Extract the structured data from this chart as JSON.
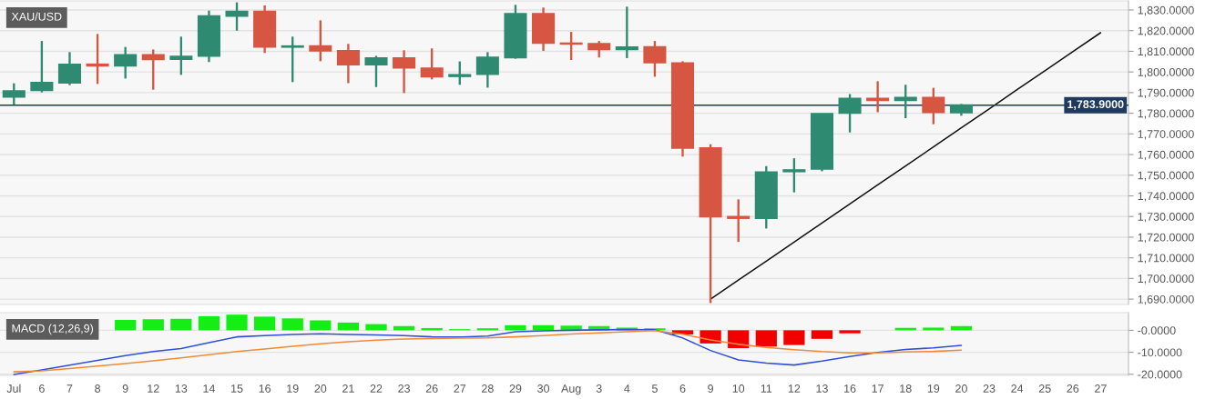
{
  "chart_data": [
    {
      "type": "candlestick",
      "title": "XAU/USD",
      "categories": [
        null,
        null,
        null,
        null,
        null,
        null,
        null,
        null,
        null,
        null,
        null,
        null,
        null,
        null,
        null,
        null,
        null,
        null,
        null,
        null,
        null,
        null,
        null,
        null,
        null,
        null,
        null,
        null,
        null,
        null,
        null,
        null,
        null,
        null,
        null,
        null,
        null,
        null,
        null,
        null
      ],
      "ohlc": [
        [
          1787.9,
          1794.5,
          1784.2,
          1790.8
        ],
        [
          1791.1,
          1815.0,
          1790.1,
          1794.8
        ],
        [
          1794.8,
          1809.6,
          1793.6,
          1803.6
        ],
        [
          1803.7,
          1818.4,
          1794.2,
          1803.0
        ],
        [
          1803.0,
          1812.1,
          1796.8,
          1808.3
        ],
        [
          1808.3,
          1810.9,
          1791.4,
          1806.1
        ],
        [
          1806.2,
          1817.1,
          1798.6,
          1807.5
        ],
        [
          1807.7,
          1829.7,
          1804.8,
          1827.1
        ],
        [
          1827.1,
          1833.7,
          1820.0,
          1829.3
        ],
        [
          1829.3,
          1832.2,
          1809.2,
          1812.1
        ],
        [
          1812.1,
          1817.1,
          1795.1,
          1812.5
        ],
        [
          1812.5,
          1825.0,
          1805.2,
          1810.3
        ],
        [
          1810.2,
          1813.6,
          1794.6,
          1803.6
        ],
        [
          1803.6,
          1807.8,
          1792.7,
          1806.7
        ],
        [
          1806.7,
          1810.5,
          1789.8,
          1802.0
        ],
        [
          1801.8,
          1811.4,
          1796.4,
          1797.7
        ],
        [
          1797.9,
          1805.1,
          1793.8,
          1798.6
        ],
        [
          1798.9,
          1809.6,
          1792.4,
          1807.0
        ],
        [
          1807.0,
          1832.5,
          1806.4,
          1828.2
        ],
        [
          1828.2,
          1831.2,
          1810.2,
          1814.0
        ],
        [
          1813.9,
          1819.4,
          1805.8,
          1813.6
        ],
        [
          1813.6,
          1815.0,
          1807.0,
          1810.9
        ],
        [
          1810.9,
          1831.6,
          1806.7,
          1812.0
        ],
        [
          1812.1,
          1815.0,
          1797.7,
          1804.5
        ],
        [
          1804.3,
          1805.2,
          1759.0,
          1763.2
        ],
        [
          1763.2,
          1765.0,
          1688.1,
          1729.9
        ],
        [
          1729.9,
          1738.3,
          1717.7,
          1729.2
        ],
        [
          1729.2,
          1754.4,
          1724.2,
          1751.5
        ],
        [
          1751.8,
          1758.2,
          1741.7,
          1752.5
        ],
        [
          1753.0,
          1779.8,
          1751.9,
          1779.8
        ],
        [
          1780.1,
          1789.3,
          1770.7,
          1787.1
        ],
        [
          1787.1,
          1795.5,
          1780.5,
          1786.3
        ],
        [
          1786.3,
          1793.8,
          1777.6,
          1787.6
        ],
        [
          1787.6,
          1792.3,
          1774.7,
          1780.4
        ],
        [
          1780.3,
          1784.5,
          1778.8,
          1783.9
        ],
        null,
        null,
        null,
        null,
        null
      ],
      "colors": [
        "#2f8a72",
        "#2f8a72",
        "#2f8a72",
        "#d65641",
        "#2f8a72",
        "#d65641",
        "#2f8a72",
        "#2f8a72",
        "#2f8a72",
        "#d65641",
        "#2f8a72",
        "#d65641",
        "#d65641",
        "#2f8a72",
        "#d65641",
        "#d65641",
        "#2f8a72",
        "#2f8a72",
        "#2f8a72",
        "#d65641",
        "#d65641",
        "#d65641",
        "#2f8a72",
        "#d65641",
        "#d65641",
        "#d65641",
        "#d65641",
        "#2f8a72",
        "#2f8a72",
        "#2f8a72",
        "#2f8a72",
        "#d65641",
        "#2f8a72",
        "#d65641",
        "#2f8a72",
        null,
        null,
        null,
        null,
        null
      ],
      "series": [
        {
          "type": "line",
          "color": "#111111",
          "values": [
            null,
            null,
            null,
            null,
            null,
            null,
            null,
            null,
            null,
            null,
            null,
            null,
            null,
            null,
            null,
            null,
            null,
            null,
            null,
            null,
            null,
            null,
            null,
            null,
            null,
            1690,
            1699.2,
            1708.4,
            1717.6,
            1726.9,
            1736.1,
            1745.3,
            1754.5,
            1763.7,
            1772.9,
            1782.1,
            1791.4,
            1800.6,
            1809.8,
            1819.0
          ]
        }
      ],
      "ylim": [
        1687.4,
        1834.4
      ],
      "yticks": [
        {
          "value": 1690,
          "label": "1,690.0000"
        },
        {
          "value": 1700,
          "label": "1,700.0000"
        },
        {
          "value": 1710,
          "label": "1,710.0000"
        },
        {
          "value": 1720,
          "label": "1,720.0000"
        },
        {
          "value": 1730,
          "label": "1,730.0000"
        },
        {
          "value": 1740,
          "label": "1,740.0000"
        },
        {
          "value": 1750,
          "label": "1,750.0000"
        },
        {
          "value": 1760,
          "label": "1,760.0000"
        },
        {
          "value": 1770,
          "label": "1,770.0000"
        },
        {
          "value": 1780,
          "label": "1,780.0000"
        },
        {
          "value": 1790,
          "label": "1,790.0000"
        },
        {
          "value": 1800,
          "label": "1,800.0000"
        },
        {
          "value": 1810,
          "label": "1,810.0000"
        },
        {
          "value": 1820,
          "label": "1,820.0000"
        },
        {
          "value": 1830,
          "label": "1,830.0000"
        }
      ],
      "ref_lines": [
        {
          "axis": "y",
          "value": 1783.9,
          "label": "1,783.9000",
          "color": "#1f3a5f"
        }
      ],
      "grid": "y"
    },
    {
      "type": "bar",
      "title": "MACD (12,26,9)",
      "categories": [
        "Jul",
        "6",
        "7",
        "8",
        "9",
        "12",
        "13",
        "14",
        "15",
        "16",
        "19",
        "20",
        "21",
        "22",
        "23",
        "26",
        "27",
        "28",
        "29",
        "30",
        "Aug",
        "3",
        "4",
        "5",
        "6",
        "9",
        "10",
        "11",
        "12",
        "13",
        "16",
        "17",
        "18",
        "19",
        "20",
        "23",
        "24",
        "25",
        "26",
        "27"
      ],
      "series": [
        {
          "type": "bar",
          "values": [
            null,
            null,
            null,
            null,
            4.7,
            5.0,
            5.2,
            6.4,
            7.1,
            6.2,
            5.4,
            4.5,
            3.5,
            2.8,
            1.9,
            1.0,
            0.5,
            0.9,
            2.3,
            2.3,
            2.1,
            1.9,
            1.2,
            0.9,
            -1.9,
            -6.0,
            -8.1,
            -7.4,
            -6.7,
            -3.9,
            -1.4,
            null,
            1.1,
            1.2,
            1.9,
            null,
            null,
            null,
            null,
            null
          ],
          "colors": [
            null,
            null,
            null,
            null,
            "#14ee14",
            "#14ee14",
            "#14ee14",
            "#14ee14",
            "#14ee14",
            "#14ee14",
            "#14ee14",
            "#14ee14",
            "#14ee14",
            "#14ee14",
            "#14ee14",
            "#14ee14",
            "#14ee14",
            "#14ee14",
            "#14ee14",
            "#14ee14",
            "#14ee14",
            "#14ee14",
            "#14ee14",
            "#14ee14",
            "#f20000",
            "#f20000",
            "#f20000",
            "#f20000",
            "#f20000",
            "#f20000",
            "#f20000",
            null,
            "#14ee14",
            "#14ee14",
            "#14ee14",
            null,
            null,
            null,
            null,
            null
          ]
        },
        {
          "type": "line",
          "color": "#2f4fd6",
          "values": [
            -20.1,
            -18.0,
            -15.8,
            -13.7,
            -11.5,
            -9.7,
            -8.3,
            -5.6,
            -3.0,
            -2.4,
            -1.9,
            -1.6,
            -1.9,
            -2.1,
            -2.4,
            -3.0,
            -3.1,
            -2.6,
            -0.7,
            -0.3,
            0.0,
            0.2,
            0.4,
            0.2,
            -3.5,
            -9.2,
            -13.5,
            -14.9,
            -15.8,
            -14.0,
            -11.9,
            -10.1,
            -8.7,
            -8.0,
            -6.9,
            null,
            null,
            null,
            null,
            null
          ]
        },
        {
          "type": "line",
          "color": "#ee8a38",
          "values": [
            -18.9,
            -18.4,
            -17.4,
            -16.3,
            -15.1,
            -13.9,
            -12.5,
            -11.1,
            -9.7,
            -8.5,
            -7.3,
            -6.1,
            -5.2,
            -4.5,
            -4.0,
            -3.8,
            -3.6,
            -3.5,
            -3.0,
            -2.4,
            -1.7,
            -1.2,
            -0.7,
            -0.2,
            -1.8,
            -4.4,
            -6.4,
            -7.8,
            -8.8,
            -9.7,
            -10.3,
            -10.3,
            -9.9,
            -9.6,
            -9.0,
            null,
            null,
            null,
            null,
            null
          ]
        }
      ],
      "ylim": [
        -20.5,
        8
      ],
      "yticks": [
        {
          "value": 0,
          "label": "-0.0000"
        },
        {
          "value": -10,
          "label": "-10.0000"
        },
        {
          "value": -20,
          "label": "-20.0000"
        }
      ],
      "grid": "y"
    }
  ]
}
